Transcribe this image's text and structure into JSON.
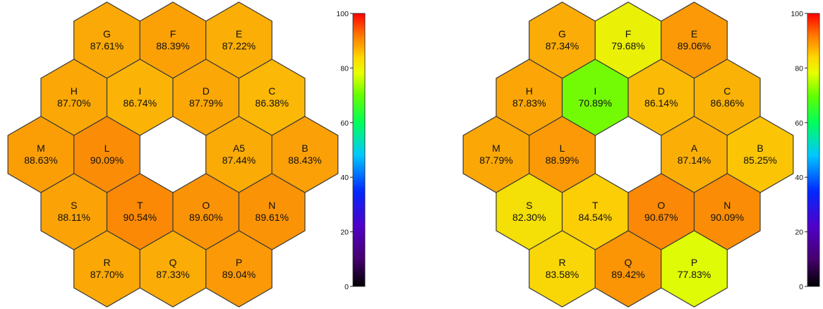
{
  "chart_data": [
    {
      "type": "hexagon-map",
      "colorbar": {
        "min": 0,
        "max": 100,
        "ticks": [
          0,
          20,
          40,
          60,
          80,
          100
        ],
        "colormap": "rainbow (black-purple-blue-cyan-green-yellow-orange-red)"
      },
      "segments": [
        {
          "id": "G",
          "label": "G",
          "value": 87.61,
          "text": "87.61%"
        },
        {
          "id": "F",
          "label": "F",
          "value": 88.39,
          "text": "88.39%"
        },
        {
          "id": "E",
          "label": "E",
          "value": 87.22,
          "text": "87.22%"
        },
        {
          "id": "H",
          "label": "H",
          "value": 87.7,
          "text": "87.70%"
        },
        {
          "id": "I",
          "label": "I",
          "value": 86.74,
          "text": "86.74%"
        },
        {
          "id": "D",
          "label": "D",
          "value": 87.79,
          "text": "87.79%"
        },
        {
          "id": "C",
          "label": "C",
          "value": 86.38,
          "text": "86.38%"
        },
        {
          "id": "M",
          "label": "M",
          "value": 88.63,
          "text": "88.63%"
        },
        {
          "id": "L",
          "label": "L",
          "value": 90.09,
          "text": "90.09%"
        },
        {
          "id": "A",
          "label": "A5",
          "value": 87.44,
          "text": "87.44%"
        },
        {
          "id": "B",
          "label": "B",
          "value": 88.43,
          "text": "88.43%"
        },
        {
          "id": "S",
          "label": "S",
          "value": 88.11,
          "text": "88.11%"
        },
        {
          "id": "T",
          "label": "T",
          "value": 90.54,
          "text": "90.54%"
        },
        {
          "id": "O",
          "label": "O",
          "value": 89.6,
          "text": "89.60%"
        },
        {
          "id": "N",
          "label": "N",
          "value": 89.61,
          "text": "89.61%"
        },
        {
          "id": "R",
          "label": "R",
          "value": 87.7,
          "text": "87.70%"
        },
        {
          "id": "Q",
          "label": "Q",
          "value": 87.33,
          "text": "87.33%"
        },
        {
          "id": "P",
          "label": "P",
          "value": 89.04,
          "text": "89.04%"
        }
      ]
    },
    {
      "type": "hexagon-map",
      "colorbar": {
        "min": 0,
        "max": 100,
        "ticks": [
          0,
          20,
          40,
          60,
          80,
          100
        ],
        "colormap": "rainbow (black-purple-blue-cyan-green-yellow-orange-red)"
      },
      "segments": [
        {
          "id": "G",
          "label": "G",
          "value": 87.34,
          "text": "87.34%"
        },
        {
          "id": "F",
          "label": "F",
          "value": 79.68,
          "text": "79.68%"
        },
        {
          "id": "E",
          "label": "E",
          "value": 89.06,
          "text": "89.06%"
        },
        {
          "id": "H",
          "label": "H",
          "value": 87.83,
          "text": "87.83%"
        },
        {
          "id": "I",
          "label": "I",
          "value": 70.89,
          "text": "70.89%"
        },
        {
          "id": "D",
          "label": "D",
          "value": 86.14,
          "text": "86.14%"
        },
        {
          "id": "C",
          "label": "C",
          "value": 86.86,
          "text": "86.86%"
        },
        {
          "id": "M",
          "label": "M",
          "value": 87.79,
          "text": "87.79%"
        },
        {
          "id": "L",
          "label": "L",
          "value": 88.99,
          "text": "88.99%"
        },
        {
          "id": "A",
          "label": "A",
          "value": 87.14,
          "text": "87.14%"
        },
        {
          "id": "B",
          "label": "B",
          "value": 85.25,
          "text": "85.25%"
        },
        {
          "id": "S",
          "label": "S",
          "value": 82.3,
          "text": "82.30%"
        },
        {
          "id": "T",
          "label": "T",
          "value": 84.54,
          "text": "84.54%"
        },
        {
          "id": "O",
          "label": "O",
          "value": 90.67,
          "text": "90.67%"
        },
        {
          "id": "N",
          "label": "N",
          "value": 90.09,
          "text": "90.09%"
        },
        {
          "id": "R",
          "label": "R",
          "value": 83.58,
          "text": "83.58%"
        },
        {
          "id": "Q",
          "label": "Q",
          "value": 89.42,
          "text": "89.42%"
        },
        {
          "id": "P",
          "label": "P",
          "value": 77.83,
          "text": "77.83%"
        }
      ]
    }
  ]
}
